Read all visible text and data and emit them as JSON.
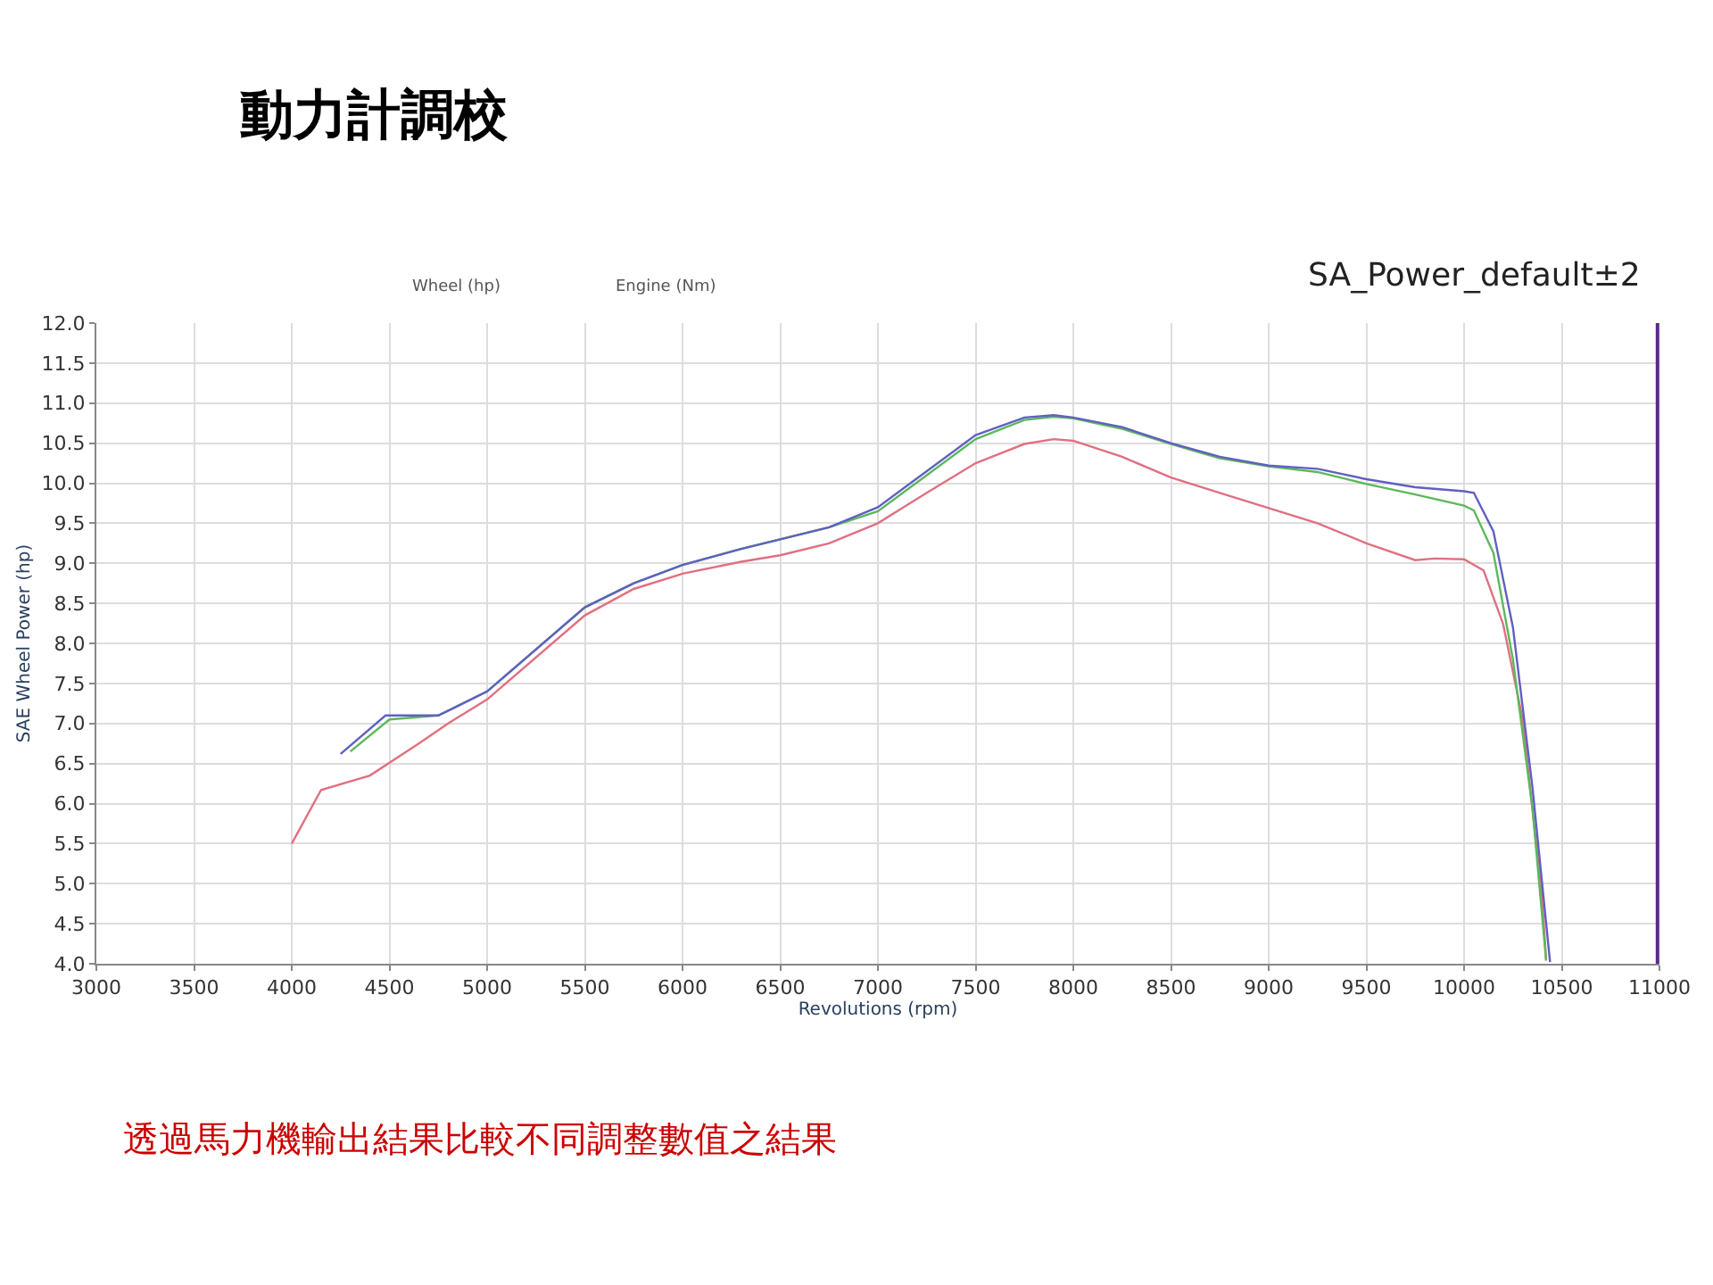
{
  "chart_data": {
    "type": "line",
    "title": "動力計調校",
    "xlabel": "Revolutions (rpm)",
    "ylabel": "SAE Wheel Power (hp)",
    "xlim": [
      3000,
      11000
    ],
    "xticks": [
      3000,
      3500,
      4000,
      4500,
      5000,
      5500,
      6000,
      6500,
      7000,
      7500,
      8000,
      8500,
      9000,
      9500,
      10000,
      10500,
      11000
    ],
    "ylim": [
      4.0,
      12.0
    ],
    "yticks": [
      {
        "value": 4,
        "label": "4.0"
      },
      4.5,
      {
        "value": 5,
        "label": "5.0"
      },
      5.5,
      {
        "value": 6,
        "label": "6.0"
      },
      6.5,
      {
        "value": 7,
        "label": "7.0"
      },
      7.5,
      {
        "value": 8,
        "label": "8.0"
      },
      8.5,
      {
        "value": 9,
        "label": "9.0"
      },
      9.5,
      {
        "value": 10,
        "label": "10.0"
      },
      10.5,
      {
        "value": 11,
        "label": "11.0"
      },
      11.5,
      {
        "value": 12,
        "label": "12.0"
      }
    ],
    "grid": true,
    "marker": "none",
    "line_style": "solid",
    "series": [
      {
        "color": "#e07080",
        "x": [
          4000,
          4150,
          4400,
          4650,
          4800,
          5000,
          5500,
          5750,
          6000,
          6300,
          6500,
          6750,
          7000,
          7250,
          7500,
          7750,
          7900,
          8000,
          8250,
          8500,
          8750,
          9000,
          9250,
          9500,
          9750,
          9850,
          10000,
          10100,
          10200,
          10300,
          10400,
          10420
        ],
        "values": [
          5.5,
          6.17,
          6.35,
          6.75,
          7.0,
          7.3,
          8.35,
          8.68,
          8.87,
          9.02,
          9.1,
          9.25,
          9.5,
          9.88,
          10.25,
          10.49,
          10.55,
          10.53,
          10.33,
          10.07,
          9.88,
          9.69,
          9.5,
          9.25,
          9.04,
          9.06,
          9.05,
          8.91,
          8.24,
          7.05,
          4.8,
          4.04
        ]
      },
      {
        "color": "#5cb85c",
        "x": [
          4300,
          4500,
          4750,
          5000,
          5500,
          5750,
          6000,
          6300,
          6500,
          6750,
          7000,
          7250,
          7500,
          7750,
          7900,
          8000,
          8250,
          8500,
          8750,
          9000,
          9250,
          9500,
          9750,
          10000,
          10050,
          10150,
          10250,
          10350,
          10420
        ],
        "values": [
          6.65,
          7.05,
          7.1,
          7.4,
          8.45,
          8.75,
          8.98,
          9.18,
          9.3,
          9.45,
          9.65,
          10.1,
          10.55,
          10.79,
          10.83,
          10.81,
          10.68,
          10.49,
          10.31,
          10.21,
          10.14,
          9.99,
          9.86,
          9.72,
          9.66,
          9.13,
          7.8,
          5.94,
          4.04
        ]
      },
      {
        "color": "#6060c0",
        "x": [
          4250,
          4480,
          4750,
          5000,
          5500,
          5750,
          6000,
          6300,
          6500,
          6750,
          7000,
          7250,
          7500,
          7750,
          7900,
          8000,
          8250,
          8500,
          8750,
          9000,
          9250,
          9500,
          9750,
          10000,
          10050,
          10150,
          10250,
          10350,
          10440
        ],
        "values": [
          6.62,
          7.1,
          7.1,
          7.4,
          8.45,
          8.75,
          8.98,
          9.18,
          9.3,
          9.45,
          9.7,
          10.15,
          10.6,
          10.82,
          10.85,
          10.82,
          10.7,
          10.5,
          10.33,
          10.22,
          10.18,
          10.05,
          9.95,
          9.9,
          9.88,
          9.4,
          8.2,
          6.2,
          4.02
        ]
      }
    ],
    "ref_lines": [
      {
        "axis": "x",
        "value": 10990,
        "label": null,
        "color": "#5a2a8a",
        "line_style": "solid"
      }
    ],
    "annotations": [
      "Wheel (hp)",
      "Engine (Nm)",
      "SA_Power_default±2",
      "透過馬力機輸出結果比較不同調整數值之結果"
    ]
  }
}
